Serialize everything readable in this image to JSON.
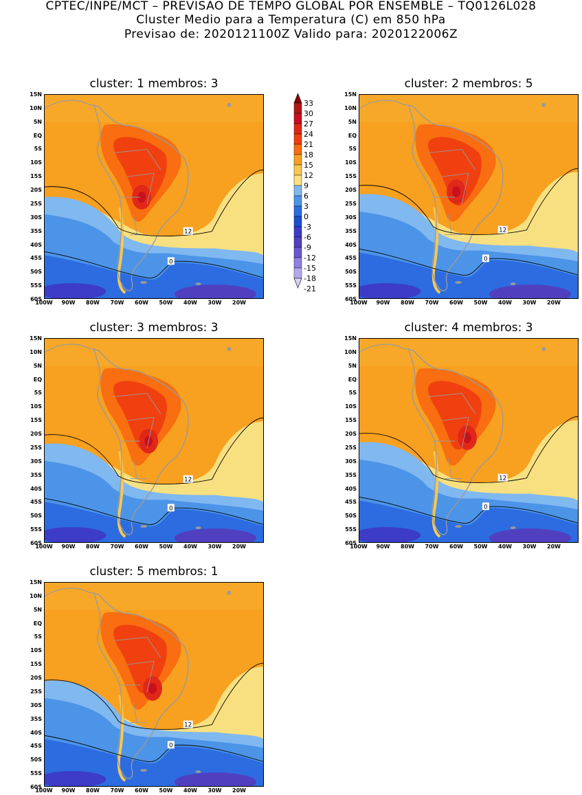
{
  "header": {
    "line1": "CPTEC/INPE/MCT – PREVISAO DE TEMPO GLOBAL POR ENSEMBLE – TQ0126L028",
    "line2": "Cluster Medio para a Temperatura (C) em 850 hPa",
    "line3": "Previsao de: 2020121100Z   Valido para: 2020122006Z"
  },
  "axes": {
    "lat_labels": [
      "15N",
      "10N",
      "5N",
      "EQ",
      "5S",
      "10S",
      "15S",
      "20S",
      "25S",
      "30S",
      "35S",
      "40S",
      "45S",
      "50S",
      "55S",
      "60S"
    ],
    "lon_labels": [
      "100W",
      "90W",
      "80W",
      "70W",
      "60W",
      "50W",
      "40W",
      "30W",
      "20W"
    ]
  },
  "colorbar": {
    "labels": [
      "33",
      "30",
      "27",
      "24",
      "21",
      "18",
      "15",
      "12",
      "9",
      "6",
      "3",
      "0",
      "-3",
      "-6",
      "-9",
      "-12",
      "-15",
      "-18",
      "-21"
    ],
    "colors": [
      "#8b0000",
      "#b01818",
      "#c8101e",
      "#e02818",
      "#f04010",
      "#f86e10",
      "#f8a020",
      "#f8c850",
      "#f8e080",
      "#80b8f0",
      "#4c94e8",
      "#2c6ce0",
      "#1c50d0",
      "#3c3cc8",
      "#5040c0",
      "#6858d0",
      "#9080e0",
      "#b4a8ec",
      "#d8d0f8"
    ]
  },
  "panels": [
    {
      "title": "cluster: 1   membros: 3",
      "contour_label_12": "12",
      "contour_label_0": "0"
    },
    {
      "title": "cluster: 2   membros: 5",
      "contour_label_12": "12",
      "contour_label_0": "0"
    },
    {
      "title": "cluster: 3   membros: 3",
      "contour_label_12": "12",
      "contour_label_0": "0"
    },
    {
      "title": "cluster: 4   membros: 3",
      "contour_label_12": "12",
      "contour_label_0": "0"
    },
    {
      "title": "cluster: 5   membros: 1",
      "contour_label_12": "12",
      "contour_label_0": "0"
    }
  ]
}
